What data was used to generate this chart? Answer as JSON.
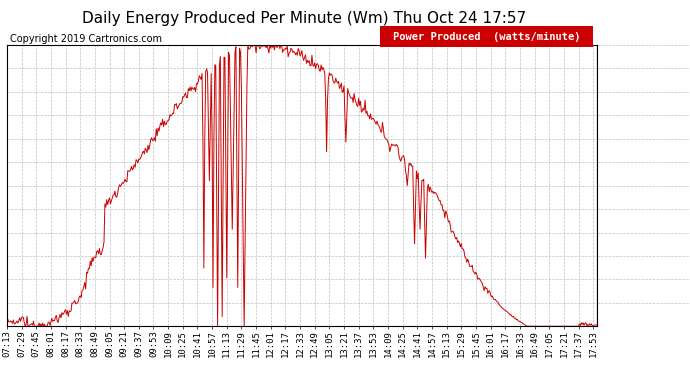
{
  "title": "Daily Energy Produced Per Minute (Wm) Thu Oct 24 17:57",
  "copyright": "Copyright 2019 Cartronics.com",
  "legend_label": "Power Produced  (watts/minute)",
  "legend_bg": "#cc0000",
  "legend_text_color": "#ffffff",
  "line_color": "#cc0000",
  "bg_color": "#ffffff",
  "plot_bg": "#ffffff",
  "grid_color": "#b0b0b0",
  "yticks": [
    0.0,
    4.83,
    9.67,
    14.5,
    19.33,
    24.17,
    29.0,
    33.83,
    38.67,
    43.5,
    48.33,
    53.17,
    58.0
  ],
  "ymax": 58.0,
  "ymin": 0.0,
  "xtick_labels": [
    "07:13",
    "07:29",
    "07:45",
    "08:01",
    "08:17",
    "08:33",
    "08:49",
    "09:05",
    "09:21",
    "09:37",
    "09:53",
    "10:09",
    "10:25",
    "10:41",
    "10:57",
    "11:13",
    "11:29",
    "11:45",
    "12:01",
    "12:17",
    "12:33",
    "12:49",
    "13:05",
    "13:21",
    "13:37",
    "13:53",
    "14:09",
    "14:25",
    "14:41",
    "14:57",
    "15:13",
    "15:29",
    "15:45",
    "16:01",
    "16:17",
    "16:33",
    "16:49",
    "17:05",
    "17:21",
    "17:37",
    "17:53"
  ],
  "title_fontsize": 11,
  "copyright_fontsize": 7,
  "tick_fontsize": 6.5,
  "ytick_fontsize": 8,
  "legend_fontsize": 7.5
}
